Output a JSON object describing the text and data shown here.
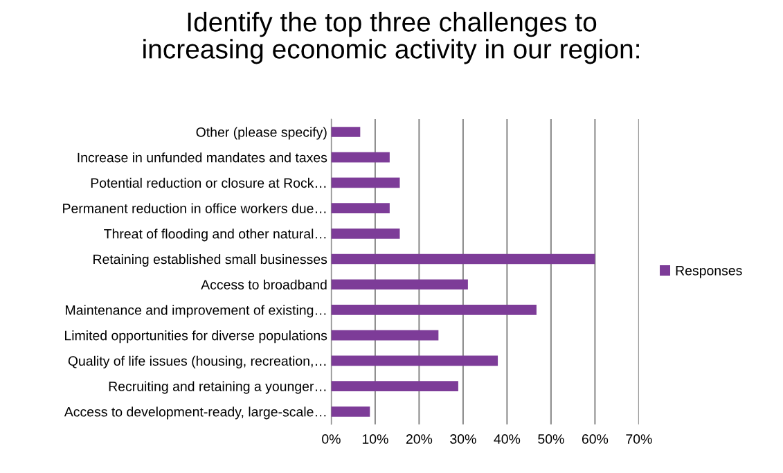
{
  "chart_data": {
    "type": "bar",
    "orientation": "horizontal",
    "title": "Identify the top three challenges to\nincreasing economic activity in our region:",
    "categories": [
      "Other (please specify)",
      "Increase in unfunded mandates and taxes",
      "Potential reduction or closure at Rock…",
      "Permanent reduction in office workers due…",
      "Threat of flooding and other natural…",
      "Retaining established small businesses",
      "Access to broadband",
      "Maintenance and improvement of existing…",
      "Limited opportunities for diverse populations",
      "Quality of life issues (housing, recreation,…",
      "Recruiting and retaining a younger…",
      "Access to development-ready, large-scale…"
    ],
    "series": [
      {
        "name": "Responses",
        "color": "#7d3c98",
        "values": [
          6.6,
          13.3,
          15.6,
          13.3,
          15.6,
          60,
          31.1,
          46.7,
          24.4,
          37.9,
          28.9,
          8.8
        ]
      }
    ],
    "xlim": [
      0,
      70
    ],
    "xticks": [
      {
        "value": 0,
        "label": "0%"
      },
      {
        "value": 10,
        "label": "10%"
      },
      {
        "value": 20,
        "label": "20%"
      },
      {
        "value": 30,
        "label": "30%"
      },
      {
        "value": 40,
        "label": "40%"
      },
      {
        "value": 50,
        "label": "50%"
      },
      {
        "value": 60,
        "label": "60%"
      },
      {
        "value": 70,
        "label": "70%"
      }
    ],
    "grid": "x",
    "legend": "right"
  }
}
